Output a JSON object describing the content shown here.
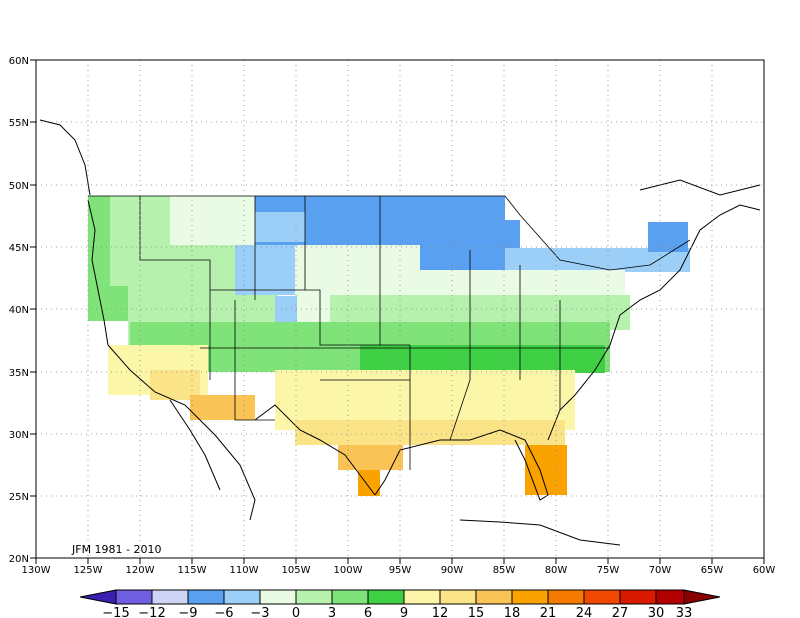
{
  "map": {
    "annotation": "JFM 1981 - 2010",
    "lon_ticks": [
      "130W",
      "125W",
      "120W",
      "115W",
      "110W",
      "105W",
      "100W",
      "95W",
      "90W",
      "85W",
      "80W",
      "75W",
      "70W",
      "65W",
      "60W"
    ],
    "lat_ticks": [
      "20N",
      "25N",
      "30N",
      "35N",
      "40N",
      "45N",
      "50N",
      "55N",
      "60N"
    ],
    "lon_range": [
      -130,
      -60
    ],
    "lat_range": [
      20,
      60
    ],
    "grid": "dotted"
  },
  "colorbar": {
    "labels": [
      "−15",
      "−12",
      "−9",
      "−6",
      "−3",
      "0",
      "3",
      "6",
      "9",
      "12",
      "15",
      "18",
      "21",
      "24",
      "27",
      "30",
      "33"
    ],
    "colors": [
      "#3a1fb0",
      "#6f5fe0",
      "#cfd6f5",
      "#5aa0f0",
      "#9ccff7",
      "#e9fbe5",
      "#b6f2ae",
      "#7fe379",
      "#3ecf45",
      "#fbf6a8",
      "#fbe487",
      "#f9c356",
      "#f9a200",
      "#f57a00",
      "#f04800",
      "#d91a00",
      "#b20000",
      "#8a0000"
    ]
  },
  "shading": {
    "levels": [
      -15,
      -12,
      -9,
      -6,
      -3,
      0,
      3,
      6,
      9,
      12,
      15,
      18,
      21,
      24,
      27,
      30,
      33
    ],
    "regions": [
      {
        "name": "northwest",
        "color": "#b6f2ae"
      },
      {
        "name": "pacific-coast",
        "color": "#7fe379"
      },
      {
        "name": "upper-midwest",
        "color": "#5aa0f0"
      },
      {
        "name": "northern-plains",
        "color": "#9ccff7"
      },
      {
        "name": "northeast",
        "color": "#9ccff7"
      },
      {
        "name": "central",
        "color": "#e9fbe5"
      },
      {
        "name": "mid-latitude",
        "color": "#b6f2ae"
      },
      {
        "name": "southern-band",
        "color": "#3ecf45"
      },
      {
        "name": "south",
        "color": "#fbf6a8"
      },
      {
        "name": "gulf-coast",
        "color": "#fbe487"
      },
      {
        "name": "florida-texas-tip",
        "color": "#f9a200"
      }
    ]
  }
}
